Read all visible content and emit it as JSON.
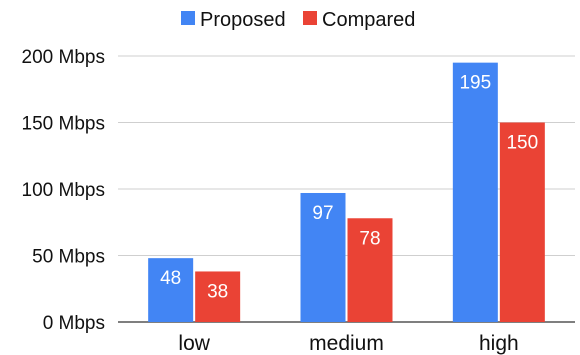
{
  "chart_data": {
    "type": "bar",
    "categories": [
      "low",
      "medium",
      "high"
    ],
    "series": [
      {
        "name": "Proposed",
        "values": [
          48,
          97,
          195
        ],
        "color": "#4285f4"
      },
      {
        "name": "Compared",
        "values": [
          38,
          78,
          150
        ],
        "color": "#ea4335"
      }
    ],
    "yticks": [
      "0 Mbps",
      "50 Mbps",
      "100 Mbps",
      "150 Mbps",
      "200 Mbps"
    ],
    "ylim": [
      0,
      200
    ],
    "grid": true,
    "legend": "top-center",
    "title": "",
    "xlabel": "",
    "ylabel": ""
  }
}
